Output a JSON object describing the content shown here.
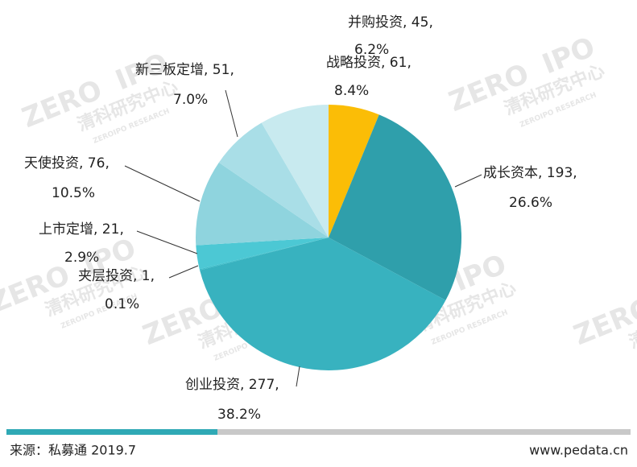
{
  "chart_data": {
    "type": "pie",
    "categories": [
      "并购投资",
      "成长资本",
      "创业投资",
      "夹层投资",
      "上市定增",
      "天使投资",
      "新三板定增",
      "战略投资"
    ],
    "values": [
      45,
      193,
      277,
      1,
      21,
      76,
      51,
      61
    ],
    "value_labels": [
      "并购投资, 45,",
      "成长资本, 193,",
      "创业投资, 277,",
      "夹层投资, 1,",
      "上市定增, 21,",
      "天使投资, 76,",
      "新三板定增, 51,",
      "战略投资, 61,"
    ],
    "percents": [
      6.2,
      26.6,
      38.2,
      0.1,
      2.9,
      10.5,
      7.0,
      8.4
    ],
    "percent_labels": [
      "6.2%",
      "26.6%",
      "38.2%",
      "0.1%",
      "2.9%",
      "10.5%",
      "7.0%",
      "8.4%"
    ],
    "colors": [
      "#fbbd06",
      "#2f9fab",
      "#38b2bf",
      "#3bbdc9",
      "#4cc8d4",
      "#8fd4de",
      "#a9dee7",
      "#c8eaef"
    ]
  },
  "watermark": {
    "logo": "ZERO",
    "logo_ipo": "IPO",
    "cn": "清科研究中心",
    "en": "ZEROIPO RESEARCH"
  },
  "footer": {
    "source": "来源：私募通 2019.7",
    "site": "www.pedata.cn"
  }
}
